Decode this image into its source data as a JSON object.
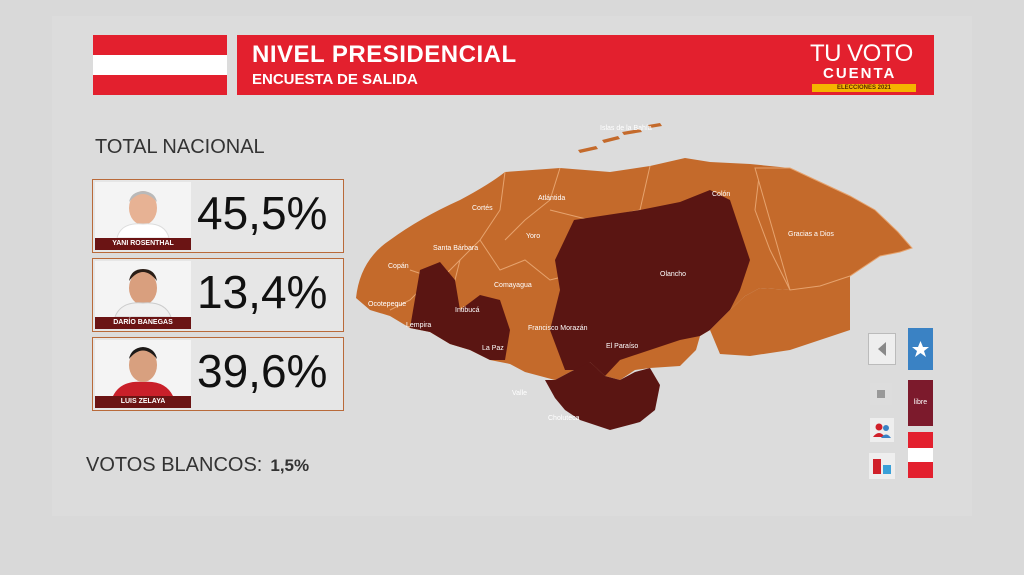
{
  "header": {
    "title": "NIVEL PRESIDENCIAL",
    "subtitle": "ENCUESTA DE SALIDA",
    "logo_line1": "TU VOTO",
    "logo_line2": "CUENTA",
    "logo_line3": "ELECCIONES 2021"
  },
  "total_label": "TOTAL NACIONAL",
  "candidates": [
    {
      "name": "YANI ROSENTHAL",
      "percent": "45,5%"
    },
    {
      "name": "DARÍO BANEGAS",
      "percent": "13,4%"
    },
    {
      "name": "LUIS ZELAYA",
      "percent": "39,6%"
    }
  ],
  "blancos": {
    "label": "VOTOS BLANCOS:",
    "value": "1,5%"
  },
  "map": {
    "departments": [
      "Islas de la Bahía",
      "Atlántida",
      "Colón",
      "Cortés",
      "Gracias a Dios",
      "Yoro",
      "Santa Bárbara",
      "Copán",
      "Olancho",
      "Comayagua",
      "Ocotepeque",
      "Intibucá",
      "Lempira",
      "Francisco Morazán",
      "La Paz",
      "El Paraíso",
      "Valle",
      "Choluteca"
    ],
    "colors": {
      "orange": "#c46a2b",
      "dark": "#5a1512"
    }
  },
  "controls": {
    "libre_label": "libre"
  }
}
